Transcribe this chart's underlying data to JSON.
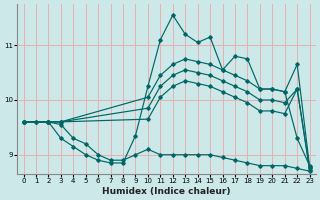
{
  "xlabel": "Humidex (Indice chaleur)",
  "bg_color": "#cce8e8",
  "grid_color": "#e8b0b0",
  "line_color": "#006666",
  "xlim": [
    -0.5,
    23.5
  ],
  "ylim": [
    8.65,
    11.75
  ],
  "yticks": [
    9,
    10,
    11
  ],
  "xticks": [
    0,
    1,
    2,
    3,
    4,
    5,
    6,
    7,
    8,
    9,
    10,
    11,
    12,
    13,
    14,
    15,
    16,
    17,
    18,
    19,
    20,
    21,
    22,
    23
  ],
  "lines": [
    {
      "x": [
        0,
        1,
        2,
        3,
        4,
        5,
        6,
        7,
        8,
        9,
        10,
        11,
        12,
        13,
        14,
        15,
        16,
        17,
        18,
        19,
        20,
        21,
        22,
        23
      ],
      "y": [
        9.6,
        9.6,
        9.6,
        9.3,
        9.15,
        9.0,
        8.9,
        8.85,
        8.85,
        9.35,
        10.25,
        11.1,
        11.55,
        11.2,
        11.05,
        11.15,
        10.55,
        10.8,
        10.75,
        10.2,
        10.2,
        10.15,
        9.3,
        8.8
      ]
    },
    {
      "x": [
        0,
        2,
        3,
        10,
        11,
        12,
        13,
        14,
        15,
        16,
        17,
        18,
        19,
        20,
        21,
        22,
        23
      ],
      "y": [
        9.6,
        9.6,
        9.6,
        10.05,
        10.45,
        10.65,
        10.75,
        10.7,
        10.65,
        10.55,
        10.45,
        10.35,
        10.2,
        10.2,
        10.15,
        10.65,
        8.78
      ]
    },
    {
      "x": [
        0,
        2,
        3,
        10,
        11,
        12,
        13,
        14,
        15,
        16,
        17,
        18,
        19,
        20,
        21,
        22,
        23
      ],
      "y": [
        9.6,
        9.6,
        9.6,
        9.85,
        10.25,
        10.45,
        10.55,
        10.5,
        10.45,
        10.35,
        10.25,
        10.15,
        10.0,
        10.0,
        9.95,
        10.2,
        8.75
      ]
    },
    {
      "x": [
        0,
        2,
        3,
        10,
        11,
        12,
        13,
        14,
        15,
        16,
        17,
        18,
        19,
        20,
        21,
        22,
        23
      ],
      "y": [
        9.6,
        9.6,
        9.6,
        9.65,
        10.05,
        10.25,
        10.35,
        10.3,
        10.25,
        10.15,
        10.05,
        9.95,
        9.8,
        9.8,
        9.75,
        10.2,
        8.72
      ]
    },
    {
      "x": [
        0,
        1,
        2,
        3,
        4,
        5,
        6,
        7,
        8,
        9,
        10,
        11,
        12,
        13,
        14,
        15,
        16,
        17,
        18,
        19,
        20,
        21,
        22,
        23
      ],
      "y": [
        9.6,
        9.6,
        9.6,
        9.55,
        9.3,
        9.2,
        9.0,
        8.9,
        8.9,
        9.0,
        9.1,
        9.0,
        9.0,
        9.0,
        9.0,
        9.0,
        8.95,
        8.9,
        8.85,
        8.8,
        8.8,
        8.8,
        8.75,
        8.7
      ]
    }
  ]
}
